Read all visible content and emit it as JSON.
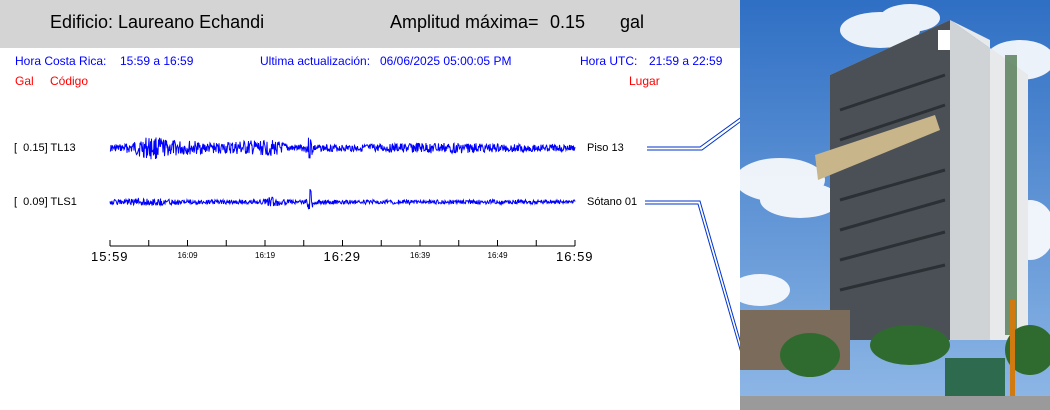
{
  "header": {
    "building_label": "Edificio: Laureano Echandi",
    "amplitude_label": "Amplitud máxima=",
    "amplitude_value": "0.15",
    "amplitude_unit": "gal"
  },
  "info": {
    "local_time_label": "Hora Costa Rica:",
    "local_time_range": "15:59 a 16:59",
    "update_label": "Ultima actualización:",
    "update_value": "06/06/2025 05:00:05 PM",
    "utc_label": "Hora UTC:",
    "utc_range": "21:59 a 22:59"
  },
  "columns": {
    "gal": "Gal",
    "code": "Código",
    "place": "Lugar"
  },
  "channels": [
    {
      "amplitude": "0.15",
      "code": "TL13",
      "place": "Piso 13"
    },
    {
      "amplitude": "0.09",
      "code": "TLS1",
      "place": "Sótano 01"
    }
  ],
  "time_axis": {
    "major": [
      "15:59",
      "16:29",
      "16:59"
    ],
    "minor": [
      "16:09",
      "16:19",
      "16:39",
      "16:49"
    ]
  },
  "colors": {
    "trace": "#0000ff",
    "header_bg": "#d4d4d4",
    "info_text": "#0000ff",
    "column_text": "#ff0000"
  }
}
